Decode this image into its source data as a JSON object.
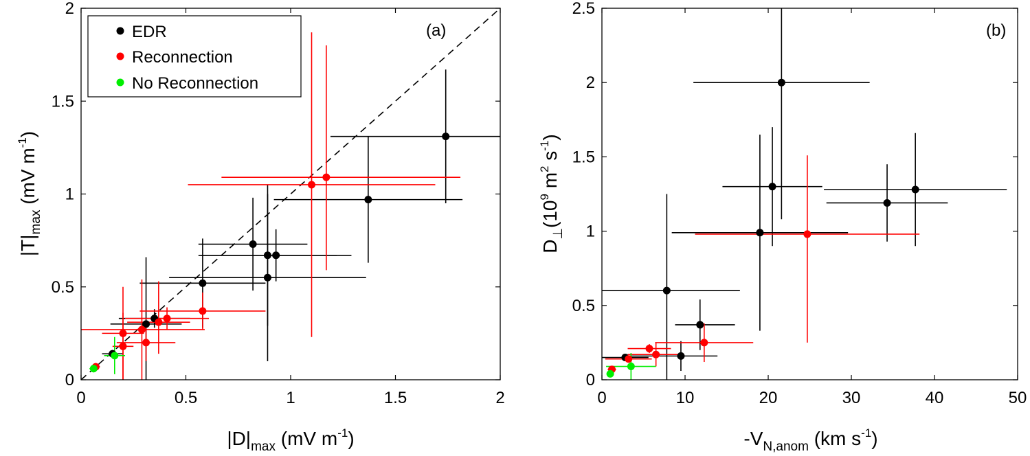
{
  "chart_data": [
    {
      "type": "scatter",
      "panel_label": "(a)",
      "xlim": [
        0,
        2
      ],
      "ylim": [
        0,
        2
      ],
      "xticks": [
        "0",
        "0.5",
        "1",
        "1.5",
        "2"
      ],
      "yticks": [
        "0",
        "0.5",
        "1",
        "1.5",
        "2"
      ],
      "xlabel": {
        "main": "|D|",
        "sub": "max",
        "unit": " (mV m",
        "sup": "-1",
        "close": ")"
      },
      "ylabel": {
        "main": "|T|",
        "sub": "max",
        "unit": " (mV m",
        "sup": "-1",
        "close": ")"
      },
      "reference_line": "y = x (dashed)",
      "legend": {
        "placement": "top-left",
        "entries": [
          {
            "label": "EDR",
            "color": "#000000"
          },
          {
            "label": "Reconnection",
            "color": "#ff0000"
          },
          {
            "label": "No Reconnection",
            "color": "#00ee00"
          }
        ]
      },
      "series": [
        {
          "name": "EDR",
          "color": "#000000",
          "points": [
            {
              "x": 1.74,
              "y": 1.31,
              "xerr": [
                0.55,
                0.36
              ],
              "yerr": [
                0.36,
                0.36
              ]
            },
            {
              "x": 1.37,
              "y": 0.97,
              "xerr": [
                0.45,
                0.45
              ],
              "yerr": [
                0.34,
                0.34
              ]
            },
            {
              "x": 0.82,
              "y": 0.73,
              "xerr": [
                0.26,
                0.26
              ],
              "yerr": [
                0.25,
                0.25
              ]
            },
            {
              "x": 0.89,
              "y": 0.67,
              "xerr": [
                0.33,
                0.33
              ],
              "yerr": [
                0.38,
                0.38
              ]
            },
            {
              "x": 0.93,
              "y": 0.67,
              "xerr": [
                0.36,
                0.36
              ],
              "yerr": [
                0.14,
                0.14
              ]
            },
            {
              "x": 0.89,
              "y": 0.55,
              "xerr": [
                0.47,
                0.47
              ],
              "yerr": [
                0.45,
                0.45
              ]
            },
            {
              "x": 0.58,
              "y": 0.52,
              "xerr": [
                0.3,
                0.3
              ],
              "yerr": [
                0.24,
                0.24
              ]
            },
            {
              "x": 0.35,
              "y": 0.33,
              "xerr": [
                0.17,
                0.17
              ],
              "yerr": [
                0.05,
                0.05
              ]
            },
            {
              "x": 0.31,
              "y": 0.3,
              "xerr": [
                0.17,
                0.17
              ],
              "yerr": [
                0.3,
                0.36
              ]
            },
            {
              "x": 0.15,
              "y": 0.14,
              "xerr": [
                0.05,
                0.05
              ],
              "yerr": [
                0.02,
                0.02
              ]
            }
          ]
        },
        {
          "name": "Reconnection",
          "color": "#ff0000",
          "points": [
            {
              "x": 1.1,
              "y": 1.05,
              "xerr": [
                0.59,
                0.59
              ],
              "yerr": [
                0.82,
                0.82
              ]
            },
            {
              "x": 1.17,
              "y": 1.09,
              "xerr": [
                0.5,
                0.64
              ],
              "yerr": [
                0.5,
                0.71
              ]
            },
            {
              "x": 0.58,
              "y": 0.37,
              "xerr": [
                0.3,
                0.3
              ],
              "yerr": [
                0.1,
                0.1
              ]
            },
            {
              "x": 0.41,
              "y": 0.33,
              "xerr": [
                0.2,
                0.2
              ],
              "yerr": [
                0.06,
                0.06
              ]
            },
            {
              "x": 0.37,
              "y": 0.31,
              "xerr": [
                0.15,
                0.15
              ],
              "yerr": [
                0.17,
                0.22
              ]
            },
            {
              "x": 0.31,
              "y": 0.2,
              "xerr": [
                0.14,
                0.14
              ],
              "yerr": [
                0.1,
                0.1
              ]
            },
            {
              "x": 0.29,
              "y": 0.27,
              "xerr": [
                0.3,
                0.3
              ],
              "yerr": [
                0.27,
                0.27
              ]
            },
            {
              "x": 0.2,
              "y": 0.25,
              "xerr": [
                0.1,
                0.1
              ],
              "yerr": [
                0.25,
                0.25
              ]
            },
            {
              "x": 0.2,
              "y": 0.18,
              "xerr": [
                0.05,
                0.05
              ],
              "yerr": [
                0.18,
                0.18
              ]
            },
            {
              "x": 0.07,
              "y": 0.07,
              "xerr": [
                0.02,
                0.02
              ],
              "yerr": [
                0.02,
                0.02
              ]
            }
          ]
        },
        {
          "name": "No Reconnection",
          "color": "#00ee00",
          "points": [
            {
              "x": 0.16,
              "y": 0.13,
              "xerr": [
                0.05,
                0.05
              ],
              "yerr": [
                0.1,
                0.1
              ]
            },
            {
              "x": 0.06,
              "y": 0.06,
              "xerr": [
                0.02,
                0.02
              ],
              "yerr": [
                0.02,
                0.02
              ]
            }
          ]
        }
      ]
    },
    {
      "type": "scatter",
      "panel_label": "(b)",
      "xlim": [
        0,
        50
      ],
      "ylim": [
        0,
        2.5
      ],
      "xticks": [
        "0",
        "10",
        "20",
        "30",
        "40",
        "50"
      ],
      "yticks": [
        "0",
        "0.5",
        "1",
        "1.5",
        "2",
        "2.5"
      ],
      "xlabel": {
        "main": "-V",
        "sub": "N,anom",
        "unit": " (km s",
        "sup": "-1",
        "close": ")"
      },
      "ylabel": {
        "main": "D",
        "sub": "⊥",
        "unit": "(10",
        "sup1": "9",
        "mid": " m",
        "sup2": "2",
        "mid2": " s",
        "sup3": "-1",
        "close": ")"
      },
      "series": [
        {
          "name": "EDR",
          "color": "#000000",
          "points": [
            {
              "x": 21.6,
              "y": 2.0,
              "xerr": [
                10.6,
                10.6
              ],
              "yerr": [
                0.92,
                0.5
              ]
            },
            {
              "x": 20.5,
              "y": 1.3,
              "xerr": [
                6.0,
                6.0
              ],
              "yerr": [
                0.4,
                0.4
              ]
            },
            {
              "x": 34.3,
              "y": 1.19,
              "xerr": [
                7.3,
                7.3
              ],
              "yerr": [
                0.26,
                0.26
              ]
            },
            {
              "x": 37.7,
              "y": 1.28,
              "xerr": [
                11.0,
                11.0
              ],
              "yerr": [
                0.38,
                0.38
              ]
            },
            {
              "x": 19.0,
              "y": 0.99,
              "xerr": [
                10.6,
                10.6
              ],
              "yerr": [
                0.66,
                0.66
              ]
            },
            {
              "x": 7.8,
              "y": 0.6,
              "xerr": [
                7.8,
                8.8
              ],
              "yerr": [
                0.65,
                0.65
              ]
            },
            {
              "x": 11.8,
              "y": 0.37,
              "xerr": [
                3.0,
                4.2
              ],
              "yerr": [
                0.17,
                0.17
              ]
            },
            {
              "x": 9.5,
              "y": 0.16,
              "xerr": [
                6.2,
                4.4
              ],
              "yerr": [
                0.1,
                0.1
              ]
            },
            {
              "x": 2.8,
              "y": 0.15,
              "xerr": [
                2.8,
                2.8
              ],
              "yerr": [
                0.02,
                0.02
              ]
            }
          ]
        },
        {
          "name": "Reconnection",
          "color": "#ff0000",
          "points": [
            {
              "x": 24.7,
              "y": 0.98,
              "xerr": [
                13.5,
                13.5
              ],
              "yerr": [
                0.73,
                0.53
              ]
            },
            {
              "x": 12.3,
              "y": 0.25,
              "xerr": [
                5.9,
                5.9
              ],
              "yerr": [
                0.13,
                0.13
              ]
            },
            {
              "x": 5.7,
              "y": 0.21,
              "xerr": [
                2.6,
                2.6
              ],
              "yerr": [
                0.03,
                0.03
              ]
            },
            {
              "x": 6.5,
              "y": 0.17,
              "xerr": [
                3.4,
                3.4
              ],
              "yerr": [
                0.08,
                0.08
              ]
            },
            {
              "x": 3.2,
              "y": 0.14,
              "xerr": [
                2.8,
                2.8
              ],
              "yerr": [
                0.01,
                0.01
              ]
            },
            {
              "x": 1.2,
              "y": 0.07,
              "xerr": [
                0.5,
                0.5
              ],
              "yerr": [
                0.02,
                0.02
              ]
            }
          ]
        },
        {
          "name": "No Reconnection",
          "color": "#00ee00",
          "points": [
            {
              "x": 3.5,
              "y": 0.09,
              "xerr": [
                3.0,
                3.0
              ],
              "yerr": [
                0.09,
                0.09
              ]
            },
            {
              "x": 1.0,
              "y": 0.04,
              "xerr": [
                0.4,
                0.4
              ],
              "yerr": [
                0.02,
                0.02
              ]
            }
          ]
        }
      ]
    }
  ]
}
